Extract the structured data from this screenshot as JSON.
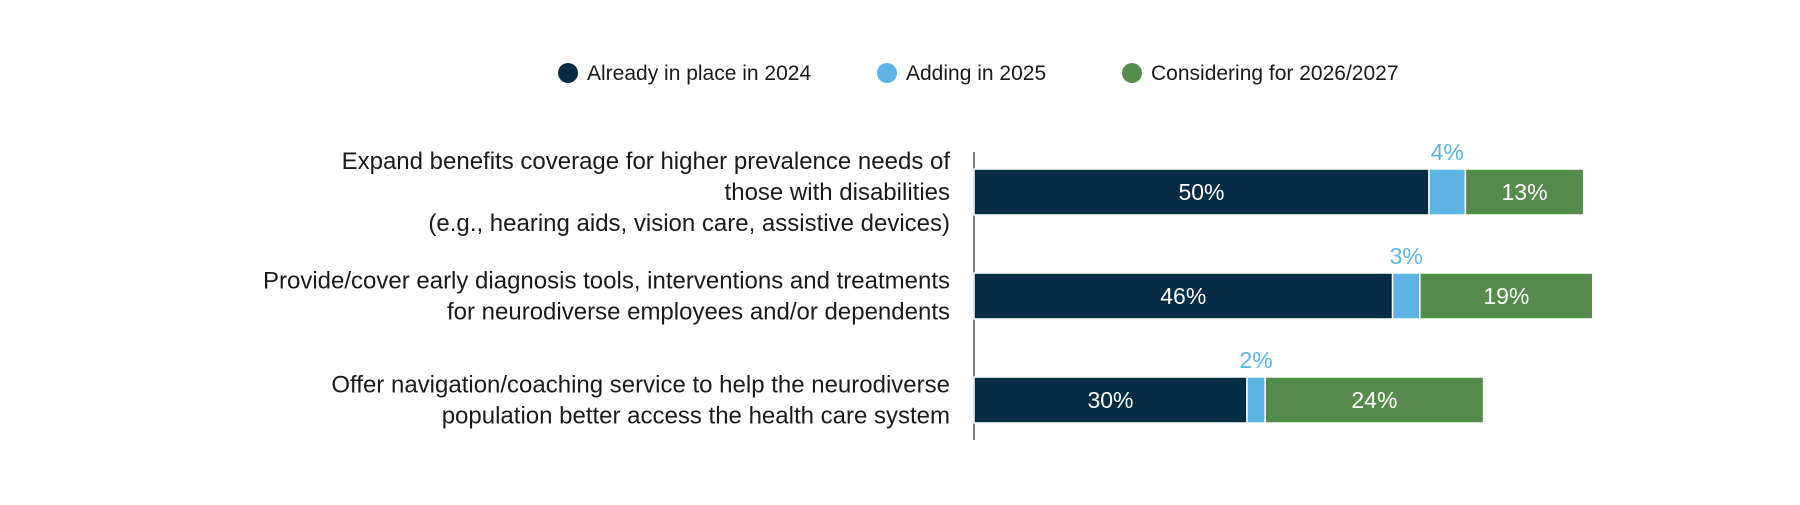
{
  "chart_data": {
    "type": "bar",
    "orientation": "horizontal",
    "stacked": true,
    "title": "",
    "xlabel": "",
    "ylabel": "",
    "grid": false,
    "legend_position": "top",
    "xlim": [
      0,
      100
    ],
    "categories": [
      [
        "Expand benefits coverage for higher prevalence needs of",
        "those with disabilities",
        "(e.g., hearing aids, vision care, assistive devices)"
      ],
      [
        "Provide/cover early diagnosis tools, interventions and treatments",
        "for neurodiverse employees and/or dependents"
      ],
      [
        "Offer navigation/coaching service to help the neurodiverse",
        "population better access the health care system"
      ]
    ],
    "series": [
      {
        "name": "Already in place in 2024",
        "color": "#062d43",
        "label_color": "#ffffff",
        "label_position": "inside",
        "values": [
          50,
          46,
          30
        ],
        "labels": [
          "50%",
          "46%",
          "30%"
        ]
      },
      {
        "name": "Adding in 2025",
        "color": "#5db3e4",
        "label_color": "#5db3e4",
        "label_position": "above",
        "values": [
          4,
          3,
          2
        ],
        "labels": [
          "4%",
          "3%",
          "2%"
        ]
      },
      {
        "name": "Considering for 2026/2027",
        "color": "#578a4d",
        "label_color": "#ffffff",
        "label_position": "inside",
        "values": [
          13,
          19,
          24
        ],
        "labels": [
          "13%",
          "19%",
          "24%"
        ]
      }
    ]
  }
}
